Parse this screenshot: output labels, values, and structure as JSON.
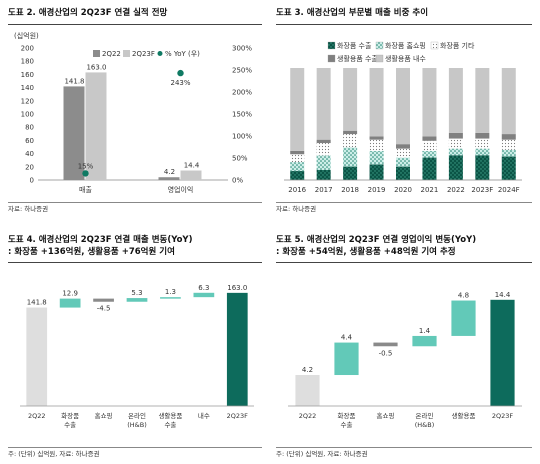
{
  "colors": {
    "dark_grey": "#8c8c8c",
    "light_grey": "#c8c8c8",
    "teal": "#0f7a63",
    "dark_green": "#0b5446",
    "mint": "#62c9b8",
    "pale_mint": "#cceee8",
    "light_bar": "#dedede",
    "neg_grey": "#8a8a8a",
    "total_green": "#0d6b5c"
  },
  "panels": {
    "p2": {
      "title": "도표 2. 애경산업의 2Q23F 연결 실적 전망",
      "source": "자료: 하나증권"
    },
    "p3": {
      "title": "도표 3. 애경산업의 부문별 매출 비중 추이",
      "source": "자료: 하나증권"
    },
    "p4": {
      "title": "도표 4. 애경산업의 2Q23F 연결 매출 변동(YoY)",
      "subtitle": ": 화장품 +136억원, 생활용품 +76억원 기여",
      "source": "주: (단위) 십억원, 자료: 하나증권"
    },
    "p5": {
      "title": "도표 5. 애경산업의 2Q23F 연결 영업이익 변동(YoY)",
      "subtitle": ": 화장품 +54억원, 생활용품 +48억원 기여 추정",
      "source": "주: (단위) 십억원, 자료: 하나증권"
    }
  },
  "chart_data": [
    {
      "id": "p2",
      "type": "bar",
      "unit_label": "(십억원)",
      "categories": [
        "매출",
        "영업이익"
      ],
      "series": [
        {
          "name": "2Q22",
          "values": [
            141.8,
            4.2
          ],
          "labels": [
            "141.8",
            "4.2"
          ]
        },
        {
          "name": "2Q23F",
          "values": [
            163.0,
            14.4
          ],
          "labels": [
            "163.0",
            "14.4"
          ]
        }
      ],
      "secondary_series": {
        "name": "% YoY (우)",
        "type": "scatter",
        "values": [
          15,
          243
        ],
        "labels": [
          "15%",
          "243%"
        ]
      },
      "ylim": [
        0,
        200
      ],
      "yticks": [
        "0",
        "20",
        "40",
        "60",
        "80",
        "100",
        "120",
        "140",
        "160",
        "180",
        "200"
      ],
      "y2lim": [
        0,
        300
      ],
      "y2ticks": [
        "0%",
        "50%",
        "100%",
        "150%",
        "200%",
        "250%",
        "300%"
      ],
      "legend": "top"
    },
    {
      "id": "p3",
      "type": "bar",
      "stacked": true,
      "categories": [
        "2016",
        "2017",
        "2018",
        "2019",
        "2020",
        "2021",
        "2022",
        "2023F",
        "2024F"
      ],
      "series": [
        {
          "name": "화장품 수출",
          "values": [
            8,
            9,
            12,
            14,
            12,
            20,
            22,
            22,
            21
          ]
        },
        {
          "name": "화장품 홈쇼핑",
          "values": [
            8,
            13,
            17,
            12,
            8,
            6,
            6,
            6,
            6
          ]
        },
        {
          "name": "화장품 기타",
          "values": [
            7,
            11,
            12,
            10,
            8,
            9,
            9,
            9,
            9
          ]
        },
        {
          "name": "생활용품 수출",
          "values": [
            3,
            3,
            3,
            3,
            4,
            4,
            5,
            5,
            5
          ]
        },
        {
          "name": "생활용품 내수",
          "values": [
            74,
            64,
            56,
            61,
            68,
            61,
            58,
            58,
            59
          ]
        }
      ],
      "ylim": [
        0,
        100
      ],
      "legend": "top"
    },
    {
      "id": "p4",
      "type": "bar",
      "subtype": "waterfall",
      "categories": [
        "2Q22",
        "화장품\n수출",
        "홈쇼핑",
        "온라인\n(H&B)",
        "생활용품\n수출",
        "내수",
        "2Q23F"
      ],
      "values": [
        141.8,
        12.9,
        -4.5,
        5.3,
        1.3,
        6.3,
        163.0
      ],
      "labels": [
        "141.8",
        "12.9",
        "-4.5",
        "5.3",
        "1.3",
        "6.3",
        "163.0"
      ],
      "kinds": [
        "total",
        "delta",
        "delta",
        "delta",
        "delta",
        "delta",
        "total"
      ],
      "ylim": [
        0,
        170
      ]
    },
    {
      "id": "p5",
      "type": "bar",
      "subtype": "waterfall",
      "categories": [
        "2Q22",
        "화장품\n수출",
        "홈쇼핑",
        "온라인\n(H&B)",
        "생활용품"
      ],
      "values": [
        4.2,
        4.4,
        -0.5,
        1.4,
        4.8,
        14.4
      ],
      "labels": [
        "4.2",
        "4.4",
        "-0.5",
        "1.4",
        "4.8",
        "14.4"
      ],
      "kinds": [
        "total",
        "delta",
        "delta",
        "delta",
        "delta",
        "total"
      ],
      "total_category": "2Q23F",
      "ylim": [
        0,
        16
      ]
    }
  ]
}
